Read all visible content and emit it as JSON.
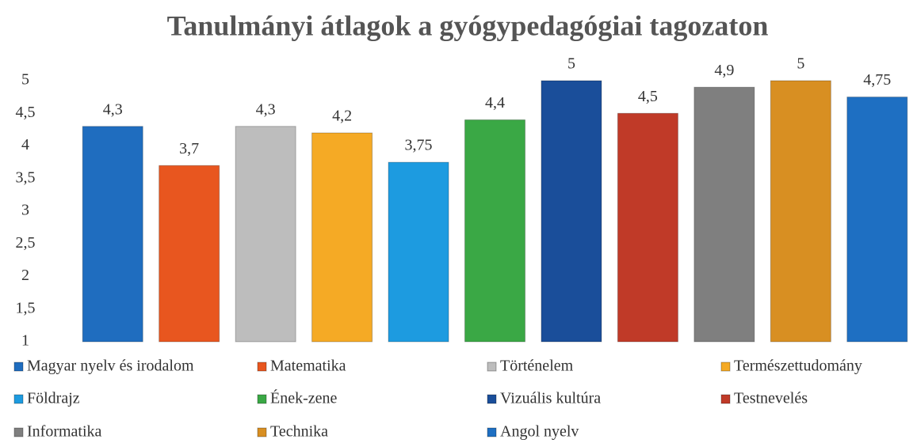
{
  "chart_data": {
    "type": "bar",
    "title": "Tanulmányi átlagok a gyógypedagógiai tagozaton",
    "categories": [
      "Magyar nyelv és irodalom",
      "Matematika",
      "Történelem",
      "Természettudomány",
      "Földrajz",
      "Ének-zene",
      "Vizuális kultúra",
      "Testnevelés",
      "Informatika",
      "Technika",
      "Angol nyelv"
    ],
    "values": [
      4.3,
      3.7,
      4.3,
      4.2,
      3.75,
      4.4,
      5,
      4.5,
      4.9,
      5,
      4.75
    ],
    "value_labels": [
      "4,3",
      "3,7",
      "4,3",
      "4,2",
      "3,75",
      "4,4",
      "5",
      "4,5",
      "4,9",
      "5",
      "4,75"
    ],
    "colors": [
      "#1f6dbf",
      "#e8561f",
      "#bdbdbd",
      "#f5aa25",
      "#1d9be0",
      "#3aa845",
      "#1a4e9a",
      "#c03a28",
      "#7f7f7f",
      "#d88f22",
      "#1e6fc2"
    ],
    "ylim": [
      1,
      5
    ],
    "yticks": [
      1,
      {
        "value": 1.5,
        "label": "1,5"
      },
      2,
      {
        "value": 2.5,
        "label": "2,5"
      },
      3,
      {
        "value": 3.5,
        "label": "3,5"
      },
      4,
      {
        "value": 4.5,
        "label": "4,5"
      },
      5
    ],
    "grid": false,
    "legend": "bottom"
  }
}
